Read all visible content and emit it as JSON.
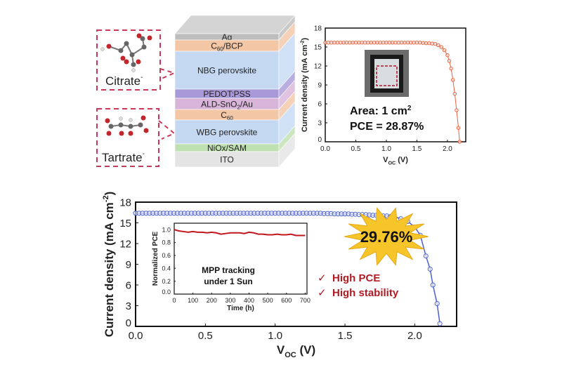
{
  "molecules": [
    {
      "label": "Citrate",
      "charge": "-"
    },
    {
      "label": "Tartrate",
      "charge": "-"
    }
  ],
  "stack": {
    "layers": [
      {
        "label": "Ag",
        "sub": "",
        "rest": "",
        "color": "#bdbdbd"
      },
      {
        "label": "C",
        "sub": "60",
        "rest": "/BCP",
        "color": "#f3c6a6"
      },
      {
        "label": "NBG perovskite",
        "sub": "",
        "rest": "",
        "color": "#c4d8f2"
      },
      {
        "label": "PEDOT:PSS",
        "sub": "",
        "rest": "",
        "color": "#a89ad8"
      },
      {
        "label": "ALD-SnO",
        "sub": "2",
        "rest": "/Au",
        "color": "#d8b4d8"
      },
      {
        "label": "C",
        "sub": "60",
        "rest": "",
        "color": "#f3c6a6"
      },
      {
        "label": "WBG perovskite",
        "sub": "",
        "rest": "",
        "color": "#c4d8f2"
      },
      {
        "label": "NiOx/SAM",
        "sub": "",
        "rest": "",
        "color": "#bfe0b0"
      },
      {
        "label": "ITO",
        "sub": "",
        "rest": "",
        "color": "#e4e4e4"
      }
    ]
  },
  "chart_data": [
    {
      "type": "line",
      "xlabel": "V",
      "xlabel_sub": "OC",
      "xlabel_unit": " (V)",
      "ylabel": "Current density (mA cm",
      "ylabel_sup": "-2",
      "ylabel_end": ")",
      "xlim": [
        0,
        2.3
      ],
      "ylim": [
        0,
        18
      ],
      "xticks": [
        "0.0",
        "0.5",
        "1.0",
        "1.5",
        "2.0"
      ],
      "yticks": [
        "0",
        "3",
        "6",
        "9",
        "12",
        "15",
        "18"
      ],
      "color": "#e8603c",
      "x": [
        0,
        0.05,
        0.1,
        0.15,
        0.2,
        0.25,
        0.3,
        0.35,
        0.4,
        0.45,
        0.5,
        0.55,
        0.6,
        0.65,
        0.7,
        0.75,
        0.8,
        0.85,
        0.9,
        0.95,
        1.0,
        1.05,
        1.1,
        1.15,
        1.2,
        1.25,
        1.3,
        1.35,
        1.4,
        1.45,
        1.5,
        1.55,
        1.6,
        1.65,
        1.7,
        1.75,
        1.8,
        1.85,
        1.9,
        1.95,
        2.0,
        2.03,
        2.06,
        2.09,
        2.12,
        2.15,
        2.18,
        2.2
      ],
      "y": [
        15.7,
        15.7,
        15.7,
        15.7,
        15.7,
        15.7,
        15.7,
        15.7,
        15.7,
        15.7,
        15.7,
        15.7,
        15.7,
        15.7,
        15.7,
        15.7,
        15.7,
        15.7,
        15.7,
        15.7,
        15.7,
        15.7,
        15.7,
        15.7,
        15.7,
        15.7,
        15.7,
        15.7,
        15.7,
        15.7,
        15.7,
        15.7,
        15.65,
        15.6,
        15.6,
        15.55,
        15.5,
        15.3,
        15.0,
        14.5,
        13.7,
        12.8,
        11.6,
        9.8,
        7.6,
        5.0,
        2.2,
        0
      ],
      "annotations": {
        "area": "Area: 1 cm",
        "area_sup": "2",
        "pce": "PCE = 28.87%"
      }
    },
    {
      "type": "line",
      "xlabel": "V",
      "xlabel_sub": "OC",
      "xlabel_unit": " (V)",
      "ylabel": "Current density (mA cm",
      "ylabel_sup": "-2",
      "ylabel_end": ")",
      "xlim": [
        0,
        2.3
      ],
      "ylim": [
        0,
        18
      ],
      "xticks": [
        "0.0",
        "0.5",
        "1.0",
        "1.5",
        "2.0"
      ],
      "yticks": [
        "0",
        "3",
        "6",
        "9",
        "12",
        "15",
        "18"
      ],
      "color": "#4a5fd0",
      "x": [
        0,
        0.025,
        0.05,
        0.075,
        0.1,
        0.125,
        0.15,
        0.175,
        0.2,
        0.225,
        0.25,
        0.275,
        0.3,
        0.325,
        0.35,
        0.375,
        0.4,
        0.425,
        0.45,
        0.475,
        0.5,
        0.525,
        0.55,
        0.575,
        0.6,
        0.625,
        0.65,
        0.675,
        0.7,
        0.725,
        0.75,
        0.775,
        0.8,
        0.825,
        0.85,
        0.875,
        0.9,
        0.925,
        0.95,
        0.975,
        1.0,
        1.025,
        1.05,
        1.075,
        1.1,
        1.125,
        1.15,
        1.175,
        1.2,
        1.225,
        1.25,
        1.275,
        1.3,
        1.325,
        1.35,
        1.375,
        1.4,
        1.425,
        1.45,
        1.475,
        1.5,
        1.525,
        1.55,
        1.575,
        1.6,
        1.625,
        1.65,
        1.675,
        1.7,
        1.725,
        1.75,
        1.775,
        1.8,
        1.825,
        1.85,
        1.9,
        1.95,
        2.0,
        2.04,
        2.08,
        2.11,
        2.13,
        2.16,
        2.18
      ],
      "y": [
        16.4,
        16.4,
        16.4,
        16.4,
        16.4,
        16.4,
        16.4,
        16.4,
        16.4,
        16.4,
        16.4,
        16.4,
        16.4,
        16.4,
        16.4,
        16.4,
        16.4,
        16.4,
        16.4,
        16.4,
        16.4,
        16.4,
        16.4,
        16.4,
        16.4,
        16.4,
        16.4,
        16.4,
        16.4,
        16.4,
        16.4,
        16.4,
        16.4,
        16.4,
        16.4,
        16.4,
        16.4,
        16.4,
        16.4,
        16.4,
        16.4,
        16.4,
        16.4,
        16.4,
        16.4,
        16.4,
        16.4,
        16.4,
        16.4,
        16.4,
        16.4,
        16.4,
        16.4,
        16.4,
        16.35,
        16.35,
        16.35,
        16.3,
        16.3,
        16.3,
        16.3,
        16.3,
        16.25,
        16.25,
        16.2,
        16.2,
        16.2,
        16.15,
        16.1,
        16.1,
        16.05,
        16.0,
        16.0,
        15.9,
        15.9,
        15.6,
        15.2,
        14.4,
        13.2,
        10.2,
        8.3,
        6.0,
        3.3,
        0.4
      ],
      "annotations": {
        "pce": "29.76%",
        "checks": [
          "High PCE",
          "High stability"
        ],
        "check_mark": "✓"
      }
    },
    {
      "type": "line",
      "xlabel": "Time (h)",
      "ylabel": "Normalized PCE",
      "xlim": [
        0,
        710
      ],
      "ylim": [
        0,
        1.1
      ],
      "xticks": [
        "0",
        "100",
        "200",
        "300",
        "400",
        "500",
        "600",
        "700"
      ],
      "yticks": [
        "0.0",
        "0.2",
        "0.4",
        "0.6",
        "0.8",
        "1.0"
      ],
      "color": "#c0161c",
      "x": [
        0,
        25,
        50,
        75,
        100,
        125,
        150,
        175,
        200,
        225,
        250,
        275,
        300,
        325,
        350,
        375,
        400,
        425,
        450,
        475,
        500,
        525,
        550,
        575,
        600,
        625,
        650,
        675,
        700
      ],
      "y": [
        1.0,
        0.98,
        0.97,
        0.96,
        0.97,
        0.96,
        0.96,
        0.95,
        0.96,
        0.95,
        0.93,
        0.94,
        0.95,
        0.95,
        0.95,
        0.94,
        0.96,
        0.95,
        0.93,
        0.93,
        0.92,
        0.92,
        0.93,
        0.92,
        0.92,
        0.93,
        0.91,
        0.91,
        0.91
      ],
      "annotations": {
        "line1": "MPP tracking",
        "line2": "under 1 Sun"
      }
    }
  ]
}
